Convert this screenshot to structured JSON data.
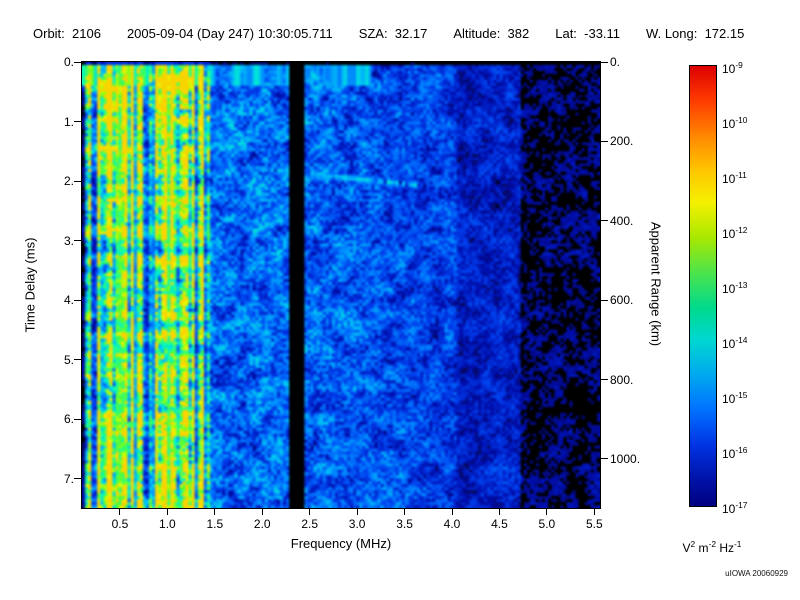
{
  "header": {
    "segments": [
      {
        "label": "Orbit:",
        "value": "2106"
      },
      {
        "label": "",
        "value": "2005-09-04 (Day 247) 10:30:05.711"
      },
      {
        "label": "SZA:",
        "value": "32.17"
      },
      {
        "label": "Altitude:",
        "value": "382"
      },
      {
        "label": "Lat:",
        "value": "-33.11"
      },
      {
        "label": "W. Long:",
        "value": "172.15"
      }
    ]
  },
  "credit": "uIOWA 20060929",
  "chart_data": {
    "type": "heatmap",
    "title": "",
    "xlabel": "Frequency (MHz)",
    "ylabel_left": "Time Delay (ms)",
    "ylabel_right": "Apparent Range (km)",
    "x_range_mhz": [
      0.1,
      5.56
    ],
    "x_ticks": [
      "0.5",
      "1.0",
      "1.5",
      "2.0",
      "2.5",
      "3.0",
      "3.5",
      "4.0",
      "4.5",
      "5.0",
      "5.5"
    ],
    "y_range_ms": [
      0.0,
      7.49
    ],
    "y_ticks_left": [
      "0.",
      "1.",
      "2.",
      "3.",
      "4.",
      "5.",
      "6.",
      "7."
    ],
    "y_ticks_right": [
      "0.",
      "200.",
      "400.",
      "600.",
      "800.",
      "1000."
    ],
    "right_axis_km_per_ms": 150,
    "grid": false,
    "legend_position": "right colorbar",
    "colorbar": {
      "scale": "log",
      "min": "1e-17",
      "max": "1e-9",
      "tick_exponents": [
        -9,
        -10,
        -11,
        -12,
        -13,
        -14,
        -15,
        -16,
        -17
      ],
      "units_segments": [
        {
          "base": "V",
          "exp": "2"
        },
        {
          "base": "m",
          "exp": "-2"
        },
        {
          "base": "Hz",
          "exp": "-1"
        }
      ],
      "gradient": [
        {
          "pos": 0,
          "color": "#dd0000"
        },
        {
          "pos": 8,
          "color": "#ff3c00"
        },
        {
          "pos": 16,
          "color": "#ff8800"
        },
        {
          "pos": 24,
          "color": "#ffc800"
        },
        {
          "pos": 31,
          "color": "#f4f000"
        },
        {
          "pos": 39,
          "color": "#a8e800"
        },
        {
          "pos": 47,
          "color": "#4ce44c"
        },
        {
          "pos": 55,
          "color": "#00d98c"
        },
        {
          "pos": 62,
          "color": "#00d8d0"
        },
        {
          "pos": 70,
          "color": "#00aaee"
        },
        {
          "pos": 78,
          "color": "#0072ff"
        },
        {
          "pos": 86,
          "color": "#0034e4"
        },
        {
          "pos": 94,
          "color": "#0012a8"
        },
        {
          "pos": 100,
          "color": "#000080"
        }
      ]
    },
    "background_level": "black where power below ~1e-17",
    "features": [
      {
        "name": "low-frequency-ionospheric-noise",
        "freq_mhz": [
          0.1,
          1.45
        ],
        "time_ms": [
          0,
          7.49
        ],
        "appearance": "dense green/cyan vertical striping with yellow streaks, levels up to ~1e-12"
      },
      {
        "name": "plasma-harmonic-line",
        "freq_mhz": 0.5,
        "appearance": "bright yellow-green vertical line spanning full time range"
      },
      {
        "name": "plasma-harmonic-line",
        "freq_mhz": 1.05,
        "appearance": "bright green vertical line spanning full time range"
      },
      {
        "name": "surface-clutter-band",
        "time_ms": [
          0.1,
          0.4
        ],
        "freq_mhz": [
          0.1,
          3.1
        ],
        "appearance": "patchy green/cyan dashes along the top edge"
      },
      {
        "name": "ionospheric-echo-trace",
        "freq_mhz": [
          2.0,
          3.6
        ],
        "time_ms_start": 1.8,
        "time_ms_end": 2.07,
        "appearance": "patchy cyan trace sloping slightly downward, ~1e-13"
      },
      {
        "name": "interference-gap",
        "freq_mhz": [
          2.28,
          2.46
        ],
        "appearance": "black vertical column with almost no signal"
      },
      {
        "name": "diffuse-noise-floor",
        "freq_mhz": [
          1.45,
          4.7
        ],
        "appearance": "scattered blue speckle near 1e-16 to 1e-15, fading toward higher frequency"
      },
      {
        "name": "quiet-band",
        "freq_mhz": [
          4.7,
          5.56
        ],
        "appearance": "mostly black with sparse faint blue blobs"
      }
    ]
  }
}
